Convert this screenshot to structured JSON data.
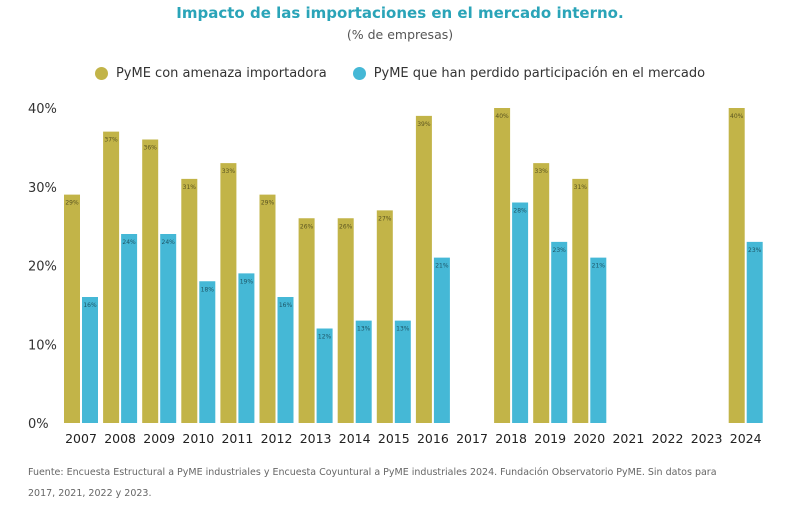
{
  "chart_data": {
    "type": "bar",
    "title": "Impacto de las importaciones en el mercado interno.",
    "subtitle": "(% de empresas)",
    "xlabel": "",
    "ylabel": "",
    "ylim": [
      0,
      40
    ],
    "yticks": [
      0,
      10,
      20,
      30,
      40
    ],
    "ytick_labels": [
      "0%",
      "10%",
      "20%",
      "30%",
      "40%"
    ],
    "grid": false,
    "legend_position": "top-center",
    "categories": [
      "2007",
      "2008",
      "2009",
      "2010",
      "2011",
      "2012",
      "2013",
      "2014",
      "2015",
      "2016",
      "2017",
      "2018",
      "2019",
      "2020",
      "2021",
      "2022",
      "2023",
      "2024"
    ],
    "series": [
      {
        "name": "PyME con amenaza importadora",
        "color": "#c2b448",
        "values": [
          29,
          37,
          36,
          31,
          33,
          29,
          26,
          26,
          27,
          39,
          null,
          40,
          33,
          31,
          null,
          null,
          null,
          40
        ],
        "labels": [
          "29%",
          "37%",
          "36%",
          "31%",
          "33%",
          "29%",
          "26%",
          "26%",
          "27%",
          "39%",
          null,
          "40%",
          "33%",
          "31%",
          null,
          null,
          null,
          "40%"
        ]
      },
      {
        "name": "PyME que han perdido participación en el mercado",
        "color": "#45b8d6",
        "values": [
          16,
          24,
          24,
          18,
          19,
          16,
          12,
          13,
          13,
          21,
          null,
          28,
          23,
          21,
          null,
          null,
          null,
          23
        ],
        "labels": [
          "16%",
          "24%",
          "24%",
          "18%",
          "19%",
          "16%",
          "12%",
          "13%",
          "13%",
          "21%",
          null,
          "28%",
          "23%",
          "21%",
          null,
          null,
          null,
          "23%"
        ]
      }
    ]
  },
  "footnote_line1": "Fuente: Encuesta Estructural a PyME industriales y Encuesta Coyuntural a PyME industriales 2024. Fundación Observatorio PyME. Sin datos para",
  "footnote_line2": "2017, 2021, 2022 y 2023."
}
